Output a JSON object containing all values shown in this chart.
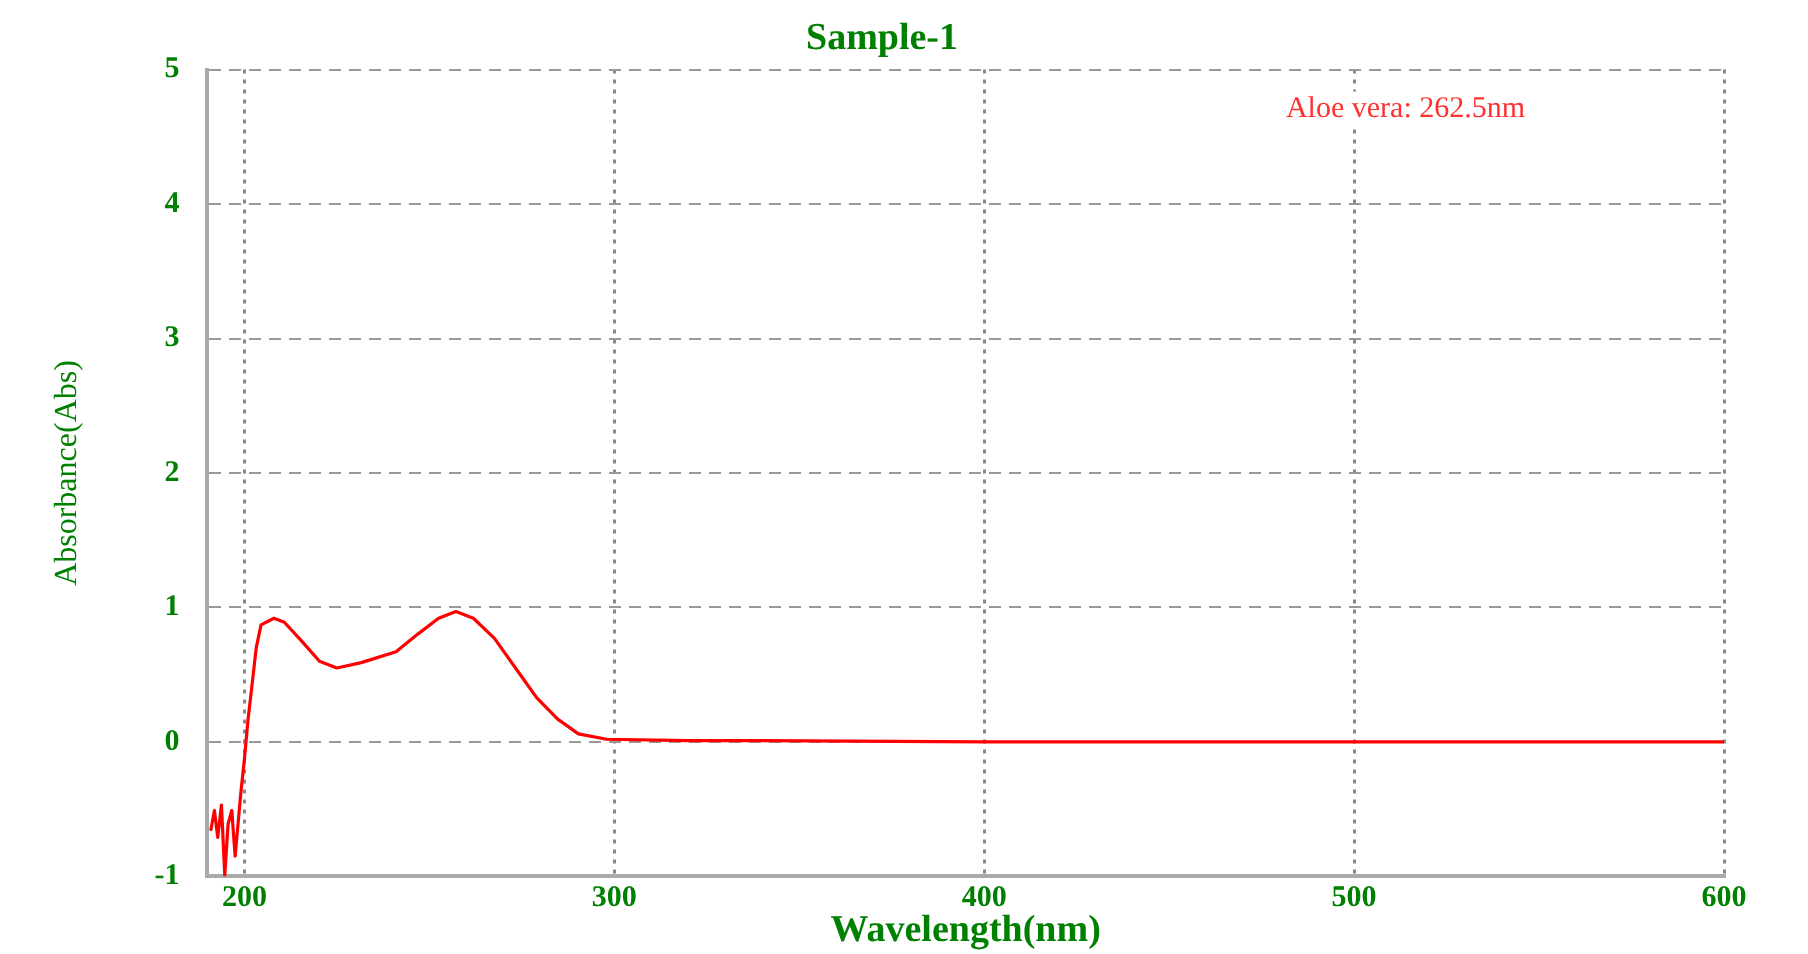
{
  "chart_data": {
    "type": "line",
    "title": "Sample-1",
    "xlabel": "Wavelength(nm)",
    "ylabel": "Absorbance(Abs)",
    "annotations": [
      "Aloe vera: 262.5nm"
    ],
    "xlim": [
      190,
      600
    ],
    "xticks": [
      200,
      300,
      400,
      500,
      600
    ],
    "ylim": [
      -1,
      5
    ],
    "yticks": [
      -1,
      0,
      1,
      2,
      3,
      4,
      5
    ],
    "grid": true,
    "legend": false,
    "marker": "none",
    "line_style": "solid",
    "series": [
      {
        "color": "#ff0000",
        "x": [
          190.9,
          191.9,
          192.8,
          193.8,
          194.7,
          195.6,
          196.6,
          197.5,
          199,
          200,
          201,
          202.3,
          203.2,
          204.5,
          208,
          210.8,
          215.5,
          220.3,
          225,
          231.6,
          241,
          246.8,
          252.5,
          257.2,
          261.9,
          267.6,
          273.3,
          279,
          284.7,
          290.3,
          297.9,
          320,
          340,
          400,
          500,
          600
        ],
        "values": [
          -0.66,
          -0.51,
          -0.71,
          -0.47,
          -0.99,
          -0.61,
          -0.51,
          -0.85,
          -0.39,
          -0.13,
          0.17,
          0.48,
          0.7,
          0.87,
          0.92,
          0.89,
          0.75,
          0.6,
          0.55,
          0.59,
          0.67,
          0.8,
          0.92,
          0.97,
          0.92,
          0.77,
          0.55,
          0.33,
          0.17,
          0.06,
          0.02,
          0.01,
          0.01,
          0,
          0,
          0
        ]
      }
    ]
  }
}
